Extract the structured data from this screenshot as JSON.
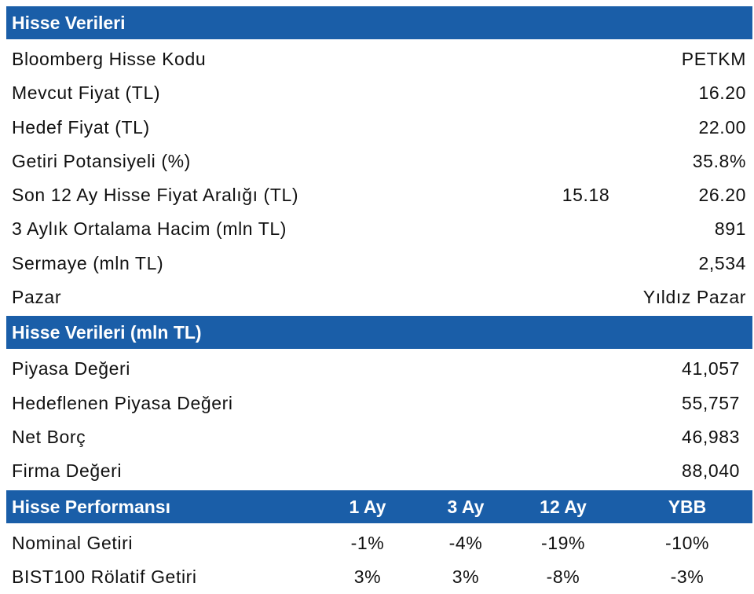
{
  "section1": {
    "title": "Hisse Verileri",
    "rows": [
      {
        "label": "Bloomberg Hisse Kodu",
        "value": "PETKM"
      },
      {
        "label": "Mevcut Fiyat (TL)",
        "value": "16.20"
      },
      {
        "label": "Hedef Fiyat (TL)",
        "value": "22.00"
      },
      {
        "label": "Getiri Potansiyeli (%)",
        "value": "35.8%"
      },
      {
        "label": "Son 12 Ay Hisse Fiyat Aralığı (TL)",
        "low": "15.18",
        "value": "26.20"
      },
      {
        "label": "3 Aylık Ortalama Hacim (mln TL)",
        "value": "891"
      },
      {
        "label": "Sermaye (mln TL)",
        "value": "2,534"
      },
      {
        "label": "Pazar",
        "value": "Yıldız Pazar"
      }
    ]
  },
  "section2": {
    "title": "Hisse Verileri (mln TL)",
    "rows": [
      {
        "label": "Piyasa Değeri",
        "value": "41,057"
      },
      {
        "label": "Hedeflenen Piyasa Değeri",
        "value": "55,757"
      },
      {
        "label": "Net Borç",
        "value": "46,983"
      },
      {
        "label": "Firma Değeri",
        "value": "88,040"
      }
    ]
  },
  "section3": {
    "title": "Hisse Performansı",
    "columns": [
      "1 Ay",
      "3 Ay",
      "12 Ay",
      "YBB"
    ],
    "rows": [
      {
        "label": "Nominal Getiri",
        "values": [
          "-1%",
          "-4%",
          "-19%",
          "-10%"
        ]
      },
      {
        "label": "BIST100 Rölatif Getiri",
        "values": [
          "3%",
          "3%",
          "-8%",
          "-3%"
        ]
      }
    ]
  },
  "colors": {
    "header_bg": "#1a5ea8",
    "header_text": "#ffffff",
    "text": "#111111"
  }
}
